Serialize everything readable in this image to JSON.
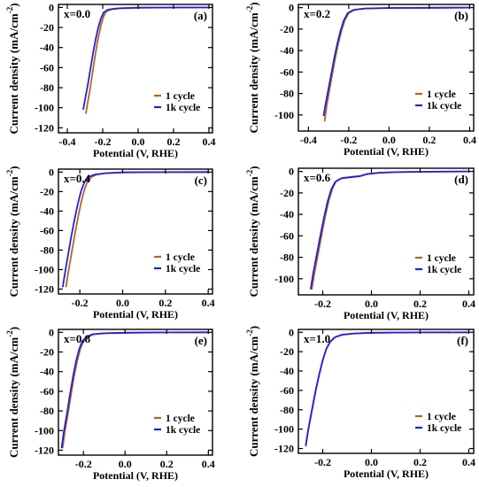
{
  "chart_data": [
    {
      "id": "a",
      "type": "line",
      "panel_label": "(a)",
      "annotation": "x=0.0",
      "xlabel": "Potential (V, RHE)",
      "ylabel": "Current density (mA/cm",
      "ylabel_sup": "-2",
      "ylabel_close": ")",
      "xlim": [
        -0.45,
        0.42
      ],
      "ylim": [
        -125,
        3
      ],
      "xticks": [
        -0.4,
        -0.2,
        0.0,
        0.2,
        0.4
      ],
      "xtick_labels": [
        "-0.4",
        "-0.2",
        "0.0",
        "0.2",
        "0.4"
      ],
      "yticks": [
        0,
        -20,
        -40,
        -60,
        -80,
        -100,
        -120
      ],
      "ytick_labels": [
        "0",
        "-20",
        "-40",
        "-60",
        "-80",
        "-100",
        "-120"
      ],
      "legend_position": "bottom-right",
      "grid": false,
      "series": [
        {
          "name": "1 cycle",
          "color": "#b5651d",
          "points": [
            [
              -0.295,
              -106
            ],
            [
              -0.285,
              -95
            ],
            [
              -0.27,
              -80
            ],
            [
              -0.255,
              -62
            ],
            [
              -0.24,
              -45
            ],
            [
              -0.225,
              -30
            ],
            [
              -0.21,
              -18
            ],
            [
              -0.195,
              -9
            ],
            [
              -0.18,
              -4
            ],
            [
              -0.15,
              -1.8
            ],
            [
              -0.1,
              -0.8
            ],
            [
              0.0,
              -0.3
            ],
            [
              0.2,
              -0.1
            ],
            [
              0.4,
              0
            ]
          ]
        },
        {
          "name": "1k cycle",
          "color": "#2020e0",
          "points": [
            [
              -0.31,
              -102
            ],
            [
              -0.3,
              -92
            ],
            [
              -0.285,
              -78
            ],
            [
              -0.27,
              -62
            ],
            [
              -0.255,
              -46
            ],
            [
              -0.24,
              -32
            ],
            [
              -0.225,
              -20
            ],
            [
              -0.21,
              -11
            ],
            [
              -0.195,
              -5
            ],
            [
              -0.17,
              -2.2
            ],
            [
              -0.12,
              -1
            ],
            [
              0.0,
              -0.3
            ],
            [
              0.2,
              -0.1
            ],
            [
              0.4,
              0
            ]
          ]
        }
      ]
    },
    {
      "id": "b",
      "type": "line",
      "panel_label": "(b)",
      "annotation": "x=0.2",
      "xlabel": "Potential (V, RHE)",
      "ylabel": "Current density (mA/cm",
      "ylabel_sup": "-2",
      "ylabel_close": ")",
      "xlim": [
        -0.45,
        0.42
      ],
      "ylim": [
        -115,
        3
      ],
      "xticks": [
        -0.4,
        -0.2,
        0.0,
        0.2,
        0.4
      ],
      "xtick_labels": [
        "-0.4",
        "-0.2",
        "0.0",
        "0.2",
        "0.4"
      ],
      "yticks": [
        0,
        -20,
        -40,
        -60,
        -80,
        -100
      ],
      "ytick_labels": [
        "0",
        "-20",
        "-40",
        "-60",
        "-80",
        "-100"
      ],
      "legend_position": "bottom-right",
      "grid": false,
      "series": [
        {
          "name": "1 cycle",
          "color": "#b5651d",
          "points": [
            [
              -0.32,
              -106
            ],
            [
              -0.31,
              -92
            ],
            [
              -0.295,
              -76
            ],
            [
              -0.28,
              -60
            ],
            [
              -0.265,
              -45
            ],
            [
              -0.25,
              -32
            ],
            [
              -0.235,
              -21
            ],
            [
              -0.22,
              -12
            ],
            [
              -0.2,
              -5
            ],
            [
              -0.17,
              -2
            ],
            [
              -0.12,
              -0.8
            ],
            [
              0.0,
              -0.3
            ],
            [
              0.2,
              -0.1
            ],
            [
              0.4,
              0
            ]
          ]
        },
        {
          "name": "1k cycle",
          "color": "#2020e0",
          "points": [
            [
              -0.325,
              -101
            ],
            [
              -0.315,
              -90
            ],
            [
              -0.3,
              -75
            ],
            [
              -0.285,
              -60
            ],
            [
              -0.27,
              -45
            ],
            [
              -0.255,
              -32
            ],
            [
              -0.24,
              -21
            ],
            [
              -0.225,
              -12
            ],
            [
              -0.205,
              -5
            ],
            [
              -0.175,
              -2
            ],
            [
              -0.12,
              -0.8
            ],
            [
              0.0,
              -0.3
            ],
            [
              0.2,
              -0.1
            ],
            [
              0.4,
              0
            ]
          ]
        }
      ]
    },
    {
      "id": "c",
      "type": "line",
      "panel_label": "(c)",
      "annotation": "x=0.4",
      "xlabel": "Potential (V, RHE)",
      "ylabel": "Current density (mA/cm",
      "ylabel_sup": "-2",
      "ylabel_close": ")",
      "xlim": [
        -0.3,
        0.42
      ],
      "ylim": [
        -125,
        3
      ],
      "xticks": [
        -0.2,
        0.0,
        0.2,
        0.4
      ],
      "xtick_labels": [
        "-0.2",
        "0.0",
        "0.2",
        "0.4"
      ],
      "yticks": [
        0,
        -20,
        -40,
        -60,
        -80,
        -100,
        -120
      ],
      "ytick_labels": [
        "0",
        "-20",
        "-40",
        "-60",
        "-80",
        "-100",
        "-120"
      ],
      "legend_position": "bottom-right",
      "grid": false,
      "series": [
        {
          "name": "1 cycle",
          "color": "#b5651d",
          "points": [
            [
              -0.265,
              -118
            ],
            [
              -0.255,
              -104
            ],
            [
              -0.24,
              -85
            ],
            [
              -0.225,
              -66
            ],
            [
              -0.21,
              -48
            ],
            [
              -0.195,
              -32
            ],
            [
              -0.18,
              -19
            ],
            [
              -0.165,
              -10
            ],
            [
              -0.145,
              -5
            ],
            [
              -0.12,
              -2.5
            ],
            [
              -0.08,
              -1.2
            ],
            [
              0.0,
              -0.4
            ],
            [
              0.2,
              -0.1
            ],
            [
              0.4,
              0
            ]
          ]
        },
        {
          "name": "1k cycle",
          "color": "#2020e0",
          "points": [
            [
              -0.28,
              -118
            ],
            [
              -0.27,
              -104
            ],
            [
              -0.255,
              -85
            ],
            [
              -0.24,
              -66
            ],
            [
              -0.225,
              -49
            ],
            [
              -0.21,
              -33
            ],
            [
              -0.195,
              -20
            ],
            [
              -0.18,
              -11
            ],
            [
              -0.16,
              -5
            ],
            [
              -0.13,
              -2.5
            ],
            [
              -0.08,
              -1.2
            ],
            [
              0.0,
              -0.4
            ],
            [
              0.2,
              -0.1
            ],
            [
              0.4,
              0
            ]
          ]
        }
      ]
    },
    {
      "id": "d",
      "type": "line",
      "panel_label": "(d)",
      "annotation": "x=0.6",
      "xlabel": "Potential (V, RHE)",
      "ylabel": "Current density (mA/cm",
      "ylabel_sup": "-2",
      "ylabel_close": ")",
      "xlim": [
        -0.3,
        0.42
      ],
      "ylim": [
        -115,
        3
      ],
      "xticks": [
        -0.2,
        0.0,
        0.2,
        0.4
      ],
      "xtick_labels": [
        "-0.2",
        "0.0",
        "0.2",
        "0.4"
      ],
      "yticks": [
        0,
        -20,
        -40,
        -60,
        -80,
        -100
      ],
      "ytick_labels": [
        "0",
        "-20",
        "-40",
        "-60",
        "-80",
        "-100"
      ],
      "legend_position": "bottom-right",
      "grid": false,
      "series": [
        {
          "name": "1 cycle",
          "color": "#b5651d",
          "points": [
            [
              -0.245,
              -110
            ],
            [
              -0.235,
              -96
            ],
            [
              -0.22,
              -78
            ],
            [
              -0.205,
              -60
            ],
            [
              -0.19,
              -42
            ],
            [
              -0.175,
              -27
            ],
            [
              -0.16,
              -16
            ],
            [
              -0.145,
              -9
            ],
            [
              -0.12,
              -6
            ],
            [
              -0.08,
              -5
            ],
            [
              -0.04,
              -4
            ],
            [
              -0.02,
              -2.5
            ],
            [
              0.03,
              -1.2
            ],
            [
              0.1,
              -0.6
            ],
            [
              0.25,
              -0.2
            ],
            [
              0.4,
              0
            ]
          ]
        },
        {
          "name": "1k cycle",
          "color": "#2020e0",
          "points": [
            [
              -0.25,
              -110
            ],
            [
              -0.24,
              -96
            ],
            [
              -0.225,
              -78
            ],
            [
              -0.21,
              -60
            ],
            [
              -0.195,
              -43
            ],
            [
              -0.18,
              -28
            ],
            [
              -0.165,
              -17
            ],
            [
              -0.15,
              -10
            ],
            [
              -0.125,
              -6.5
            ],
            [
              -0.09,
              -5.5
            ],
            [
              -0.05,
              -4.5
            ],
            [
              -0.02,
              -2.5
            ],
            [
              0.03,
              -1.2
            ],
            [
              0.1,
              -0.6
            ],
            [
              0.25,
              -0.2
            ],
            [
              0.4,
              0
            ]
          ]
        }
      ]
    },
    {
      "id": "e",
      "type": "line",
      "panel_label": "(e)",
      "annotation": "x=0.8",
      "xlabel": "Potential (V, RHE)",
      "ylabel": "Current density (mA/cm",
      "ylabel_sup": "-2",
      "ylabel_close": ")",
      "xlim": [
        -0.32,
        0.42
      ],
      "ylim": [
        -125,
        3
      ],
      "xticks": [
        -0.2,
        0.0,
        0.2,
        0.4
      ],
      "xtick_labels": [
        "-0.2",
        "0.0",
        "0.2",
        "0.4"
      ],
      "yticks": [
        0,
        -20,
        -40,
        -60,
        -80,
        -100,
        -120
      ],
      "ytick_labels": [
        "0",
        "-20",
        "-40",
        "-60",
        "-80",
        "-100",
        "-120"
      ],
      "legend_position": "bottom-right",
      "grid": false,
      "series": [
        {
          "name": "1 cycle",
          "color": "#b5651d",
          "points": [
            [
              -0.3,
              -118
            ],
            [
              -0.29,
              -102
            ],
            [
              -0.275,
              -84
            ],
            [
              -0.26,
              -64
            ],
            [
              -0.245,
              -45
            ],
            [
              -0.23,
              -29
            ],
            [
              -0.215,
              -17
            ],
            [
              -0.2,
              -9
            ],
            [
              -0.18,
              -4.5
            ],
            [
              -0.15,
              -2
            ],
            [
              -0.1,
              -1
            ],
            [
              0.0,
              -0.4
            ],
            [
              0.2,
              -0.1
            ],
            [
              0.4,
              0
            ]
          ]
        },
        {
          "name": "1k cycle",
          "color": "#2020e0",
          "points": [
            [
              -0.305,
              -118
            ],
            [
              -0.295,
              -102
            ],
            [
              -0.28,
              -84
            ],
            [
              -0.265,
              -64
            ],
            [
              -0.25,
              -45
            ],
            [
              -0.235,
              -29
            ],
            [
              -0.22,
              -17
            ],
            [
              -0.205,
              -9
            ],
            [
              -0.185,
              -4.5
            ],
            [
              -0.155,
              -2
            ],
            [
              -0.1,
              -1
            ],
            [
              0.0,
              -0.4
            ],
            [
              0.2,
              -0.1
            ],
            [
              0.4,
              0
            ]
          ]
        }
      ]
    },
    {
      "id": "f",
      "type": "line",
      "panel_label": "(f)",
      "annotation": "x=1.0",
      "xlabel": "Potential (V, RHE)",
      "ylabel": "Current density (mA/cm",
      "ylabel_sup": "-2",
      "ylabel_close": ")",
      "xlim": [
        -0.3,
        0.42
      ],
      "ylim": [
        -125,
        3
      ],
      "xticks": [
        -0.2,
        0.0,
        0.2,
        0.4
      ],
      "xtick_labels": [
        "-0.2",
        "0.0",
        "0.2",
        "0.4"
      ],
      "yticks": [
        0,
        -20,
        -40,
        -60,
        -80,
        -100,
        -120
      ],
      "ytick_labels": [
        "0",
        "-20",
        "-40",
        "-60",
        "-80",
        "-100",
        "-120"
      ],
      "legend_position": "bottom-right",
      "grid": false,
      "series": [
        {
          "name": "1 cycle",
          "color": "#b5651d",
          "points": [
            [
              -0.27,
              -118
            ],
            [
              -0.26,
              -102
            ],
            [
              -0.245,
              -82
            ],
            [
              -0.23,
              -62
            ],
            [
              -0.215,
              -44
            ],
            [
              -0.2,
              -29
            ],
            [
              -0.185,
              -17
            ],
            [
              -0.17,
              -10
            ],
            [
              -0.15,
              -5
            ],
            [
              -0.12,
              -2.5
            ],
            [
              -0.07,
              -1.2
            ],
            [
              0.0,
              -0.5
            ],
            [
              0.2,
              -0.1
            ],
            [
              0.4,
              0
            ]
          ]
        },
        {
          "name": "1k cycle",
          "color": "#2020e0",
          "points": [
            [
              -0.27,
              -117
            ],
            [
              -0.26,
              -101
            ],
            [
              -0.245,
              -81
            ],
            [
              -0.23,
              -61
            ],
            [
              -0.215,
              -44
            ],
            [
              -0.2,
              -29
            ],
            [
              -0.185,
              -17
            ],
            [
              -0.17,
              -10
            ],
            [
              -0.15,
              -5
            ],
            [
              -0.12,
              -2.5
            ],
            [
              -0.07,
              -1.2
            ],
            [
              0.0,
              -0.5
            ],
            [
              0.2,
              -0.1
            ],
            [
              0.4,
              0
            ]
          ]
        }
      ]
    }
  ]
}
